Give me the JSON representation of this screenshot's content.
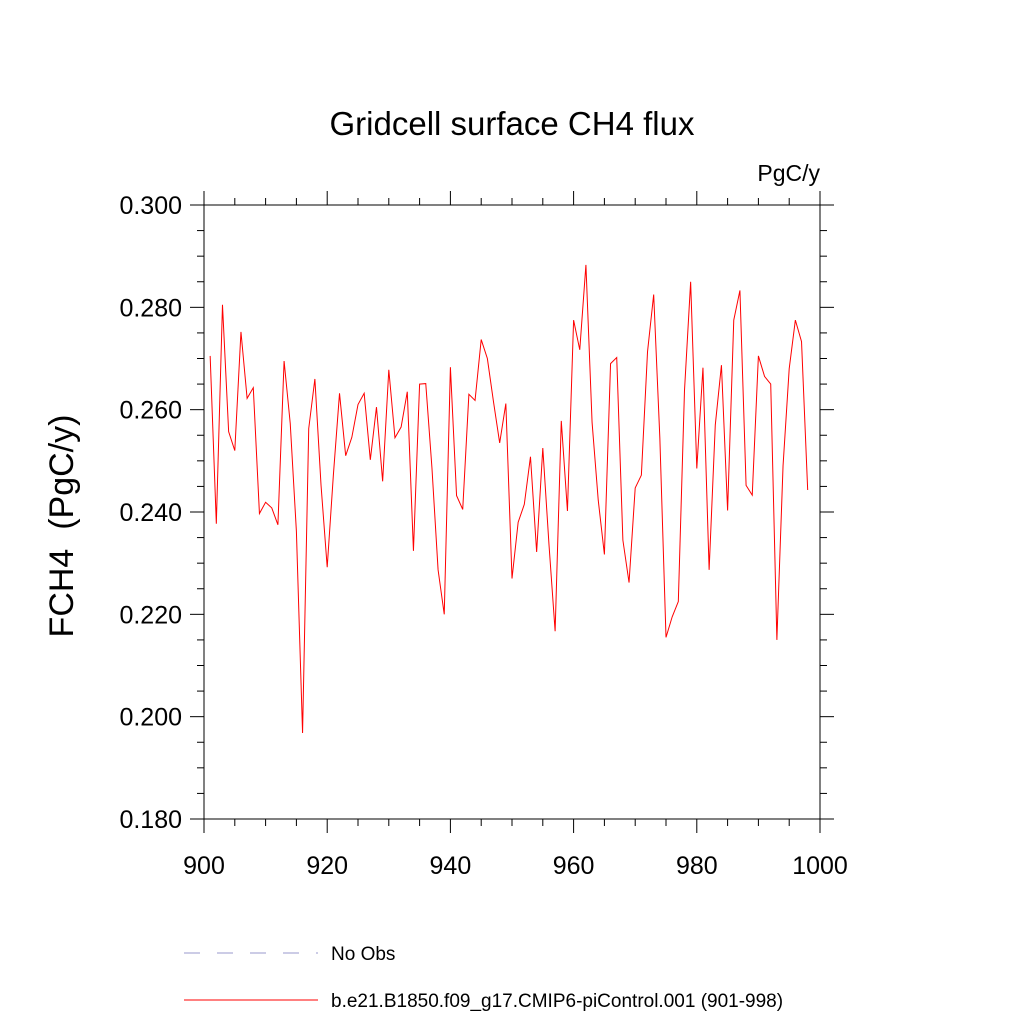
{
  "chart_data": {
    "type": "line",
    "title": "Gridcell surface CH4 flux",
    "units_label": "PgC/y",
    "xlabel": "",
    "ylabel": "FCH4  (PgC/y)",
    "xlim": [
      900,
      1000
    ],
    "ylim": [
      0.18,
      0.3
    ],
    "x_ticks": [
      900,
      920,
      940,
      960,
      980,
      1000
    ],
    "x_tick_labels": [
      "900",
      "920",
      "940",
      "960",
      "980",
      "1000"
    ],
    "y_ticks": [
      0.18,
      0.2,
      0.22,
      0.24,
      0.26,
      0.28,
      0.3
    ],
    "y_tick_labels": [
      "0.180",
      "0.200",
      "0.220",
      "0.240",
      "0.260",
      "0.280",
      "0.300"
    ],
    "grid": false,
    "series": [
      {
        "name": "b.e21.B1850.f09_g17.CMIP6-piControl.001 (901-998)",
        "color": "#ff0000",
        "style": "solid",
        "x": [
          901,
          902,
          903,
          904,
          905,
          906,
          907,
          908,
          909,
          910,
          911,
          912,
          913,
          914,
          915,
          916,
          917,
          918,
          919,
          920,
          921,
          922,
          923,
          924,
          925,
          926,
          927,
          928,
          929,
          930,
          931,
          932,
          933,
          934,
          935,
          936,
          937,
          938,
          939,
          940,
          941,
          942,
          943,
          944,
          945,
          946,
          947,
          948,
          949,
          950,
          951,
          952,
          953,
          954,
          955,
          956,
          957,
          958,
          959,
          960,
          961,
          962,
          963,
          964,
          965,
          966,
          967,
          968,
          969,
          970,
          971,
          972,
          973,
          974,
          975,
          976,
          977,
          978,
          979,
          980,
          981,
          982,
          983,
          984,
          985,
          986,
          987,
          988,
          989,
          990,
          991,
          992,
          993,
          994,
          995,
          996,
          997,
          998
        ],
        "values": [
          0.2705,
          0.2377,
          0.2805,
          0.2557,
          0.252,
          0.2752,
          0.2622,
          0.2643,
          0.2397,
          0.2419,
          0.2408,
          0.2375,
          0.2695,
          0.2573,
          0.2362,
          0.1968,
          0.2563,
          0.266,
          0.2452,
          0.2292,
          0.2472,
          0.2632,
          0.251,
          0.2546,
          0.261,
          0.2632,
          0.2502,
          0.2605,
          0.246,
          0.2678,
          0.2545,
          0.2566,
          0.2635,
          0.2324,
          0.265,
          0.2651,
          0.2487,
          0.2287,
          0.22,
          0.2683,
          0.2432,
          0.2405,
          0.263,
          0.2618,
          0.2737,
          0.27,
          0.2615,
          0.2535,
          0.2612,
          0.227,
          0.238,
          0.2415,
          0.2508,
          0.2322,
          0.2525,
          0.2337,
          0.2167,
          0.2578,
          0.2402,
          0.2775,
          0.2717,
          0.2883,
          0.2575,
          0.2423,
          0.2317,
          0.269,
          0.2702,
          0.2345,
          0.2262,
          0.2447,
          0.2472,
          0.2713,
          0.2825,
          0.2545,
          0.2155,
          0.2195,
          0.2225,
          0.2637,
          0.285,
          0.2485,
          0.2682,
          0.2287,
          0.257,
          0.2687,
          0.2403,
          0.2775,
          0.2833,
          0.2452,
          0.2433,
          0.2705,
          0.2665,
          0.265,
          0.215,
          0.249,
          0.268,
          0.2775,
          0.2733,
          0.2443
        ]
      },
      {
        "name": "No Obs",
        "color": "#9999cc",
        "style": "dashed",
        "x": [],
        "values": []
      }
    ],
    "legend": "bottom"
  }
}
